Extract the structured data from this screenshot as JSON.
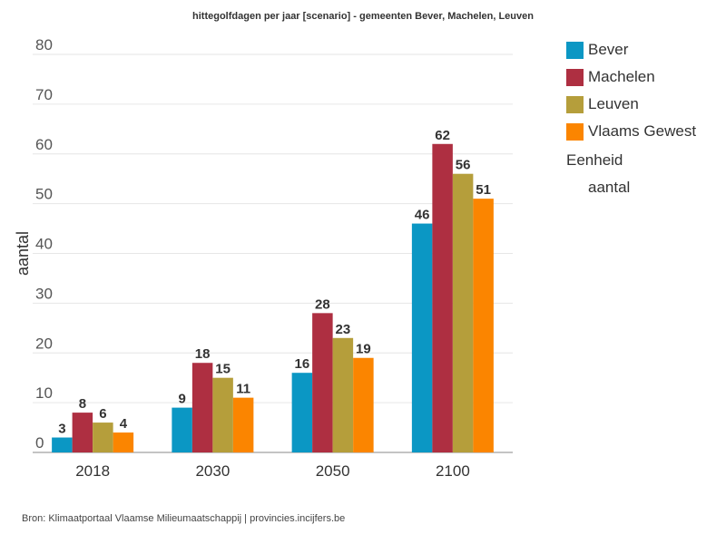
{
  "chart_data": {
    "type": "bar",
    "title": "hittegolfdagen per jaar [scenario] - gemeenten Bever, Machelen, Leuven",
    "ylabel": "aantal",
    "xlabel": "",
    "categories": [
      "2018",
      "2030",
      "2050",
      "2100"
    ],
    "ylim": [
      0,
      80
    ],
    "yticks": [
      0,
      10,
      20,
      30,
      40,
      50,
      60,
      70,
      80
    ],
    "grid": true,
    "legend_position": "right",
    "series": [
      {
        "name": "Bever",
        "color": "#0b97c4",
        "values": [
          3,
          9,
          16,
          46
        ]
      },
      {
        "name": "Machelen",
        "color": "#ae2f41",
        "values": [
          8,
          18,
          28,
          62
        ]
      },
      {
        "name": "Leuven",
        "color": "#b59e3b",
        "values": [
          6,
          15,
          23,
          56
        ]
      },
      {
        "name": "Vlaams Gewest",
        "color": "#fb8500",
        "values": [
          4,
          11,
          19,
          51
        ]
      }
    ]
  },
  "legend": {
    "unit_title": "Eenheid",
    "unit_value": "aantal"
  },
  "source": "Bron: Klimaatportaal Vlaamse Milieumaatschappij | provincies.incijfers.be"
}
